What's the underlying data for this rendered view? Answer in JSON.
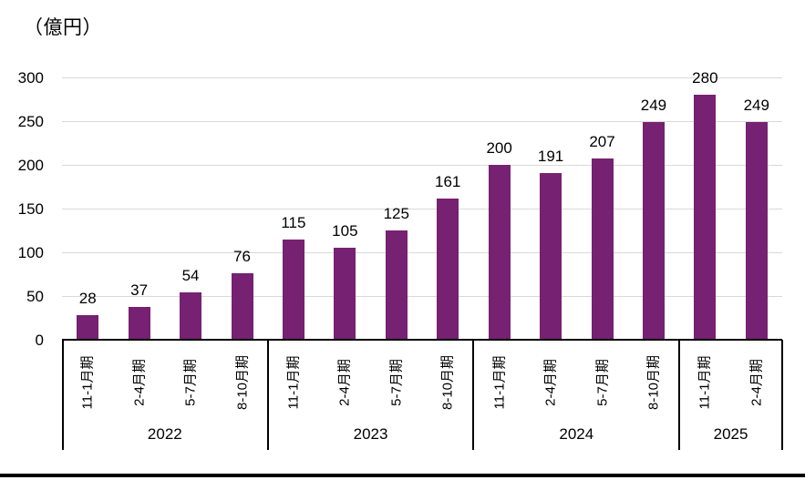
{
  "chart_data": {
    "type": "bar",
    "title": "",
    "unit_label": "（億円）",
    "xlabel": "",
    "ylabel": "（億円）",
    "ylim": [
      0,
      300
    ],
    "yticks": [
      0,
      50,
      100,
      150,
      200,
      250,
      300
    ],
    "grid": true,
    "legend": false,
    "bar_color": "#762171",
    "gridline_color": "#d9d9d9",
    "axis_color": "#000000",
    "groups": [
      {
        "year": "2022",
        "quarters": [
          "11-1月期",
          "2-4月期",
          "5-7月期",
          "8-10月期"
        ],
        "values": [
          28,
          37,
          54,
          76
        ]
      },
      {
        "year": "2023",
        "quarters": [
          "11-1月期",
          "2-4月期",
          "5-7月期",
          "8-10月期"
        ],
        "values": [
          115,
          105,
          125,
          161
        ]
      },
      {
        "year": "2024",
        "quarters": [
          "11-1月期",
          "2-4月期",
          "5-7月期",
          "8-10月期"
        ],
        "values": [
          200,
          191,
          207,
          249
        ]
      },
      {
        "year": "2025",
        "quarters": [
          "11-1月期",
          "2-4月期"
        ],
        "values": [
          280,
          249
        ]
      }
    ],
    "data_labels_shown": true
  }
}
